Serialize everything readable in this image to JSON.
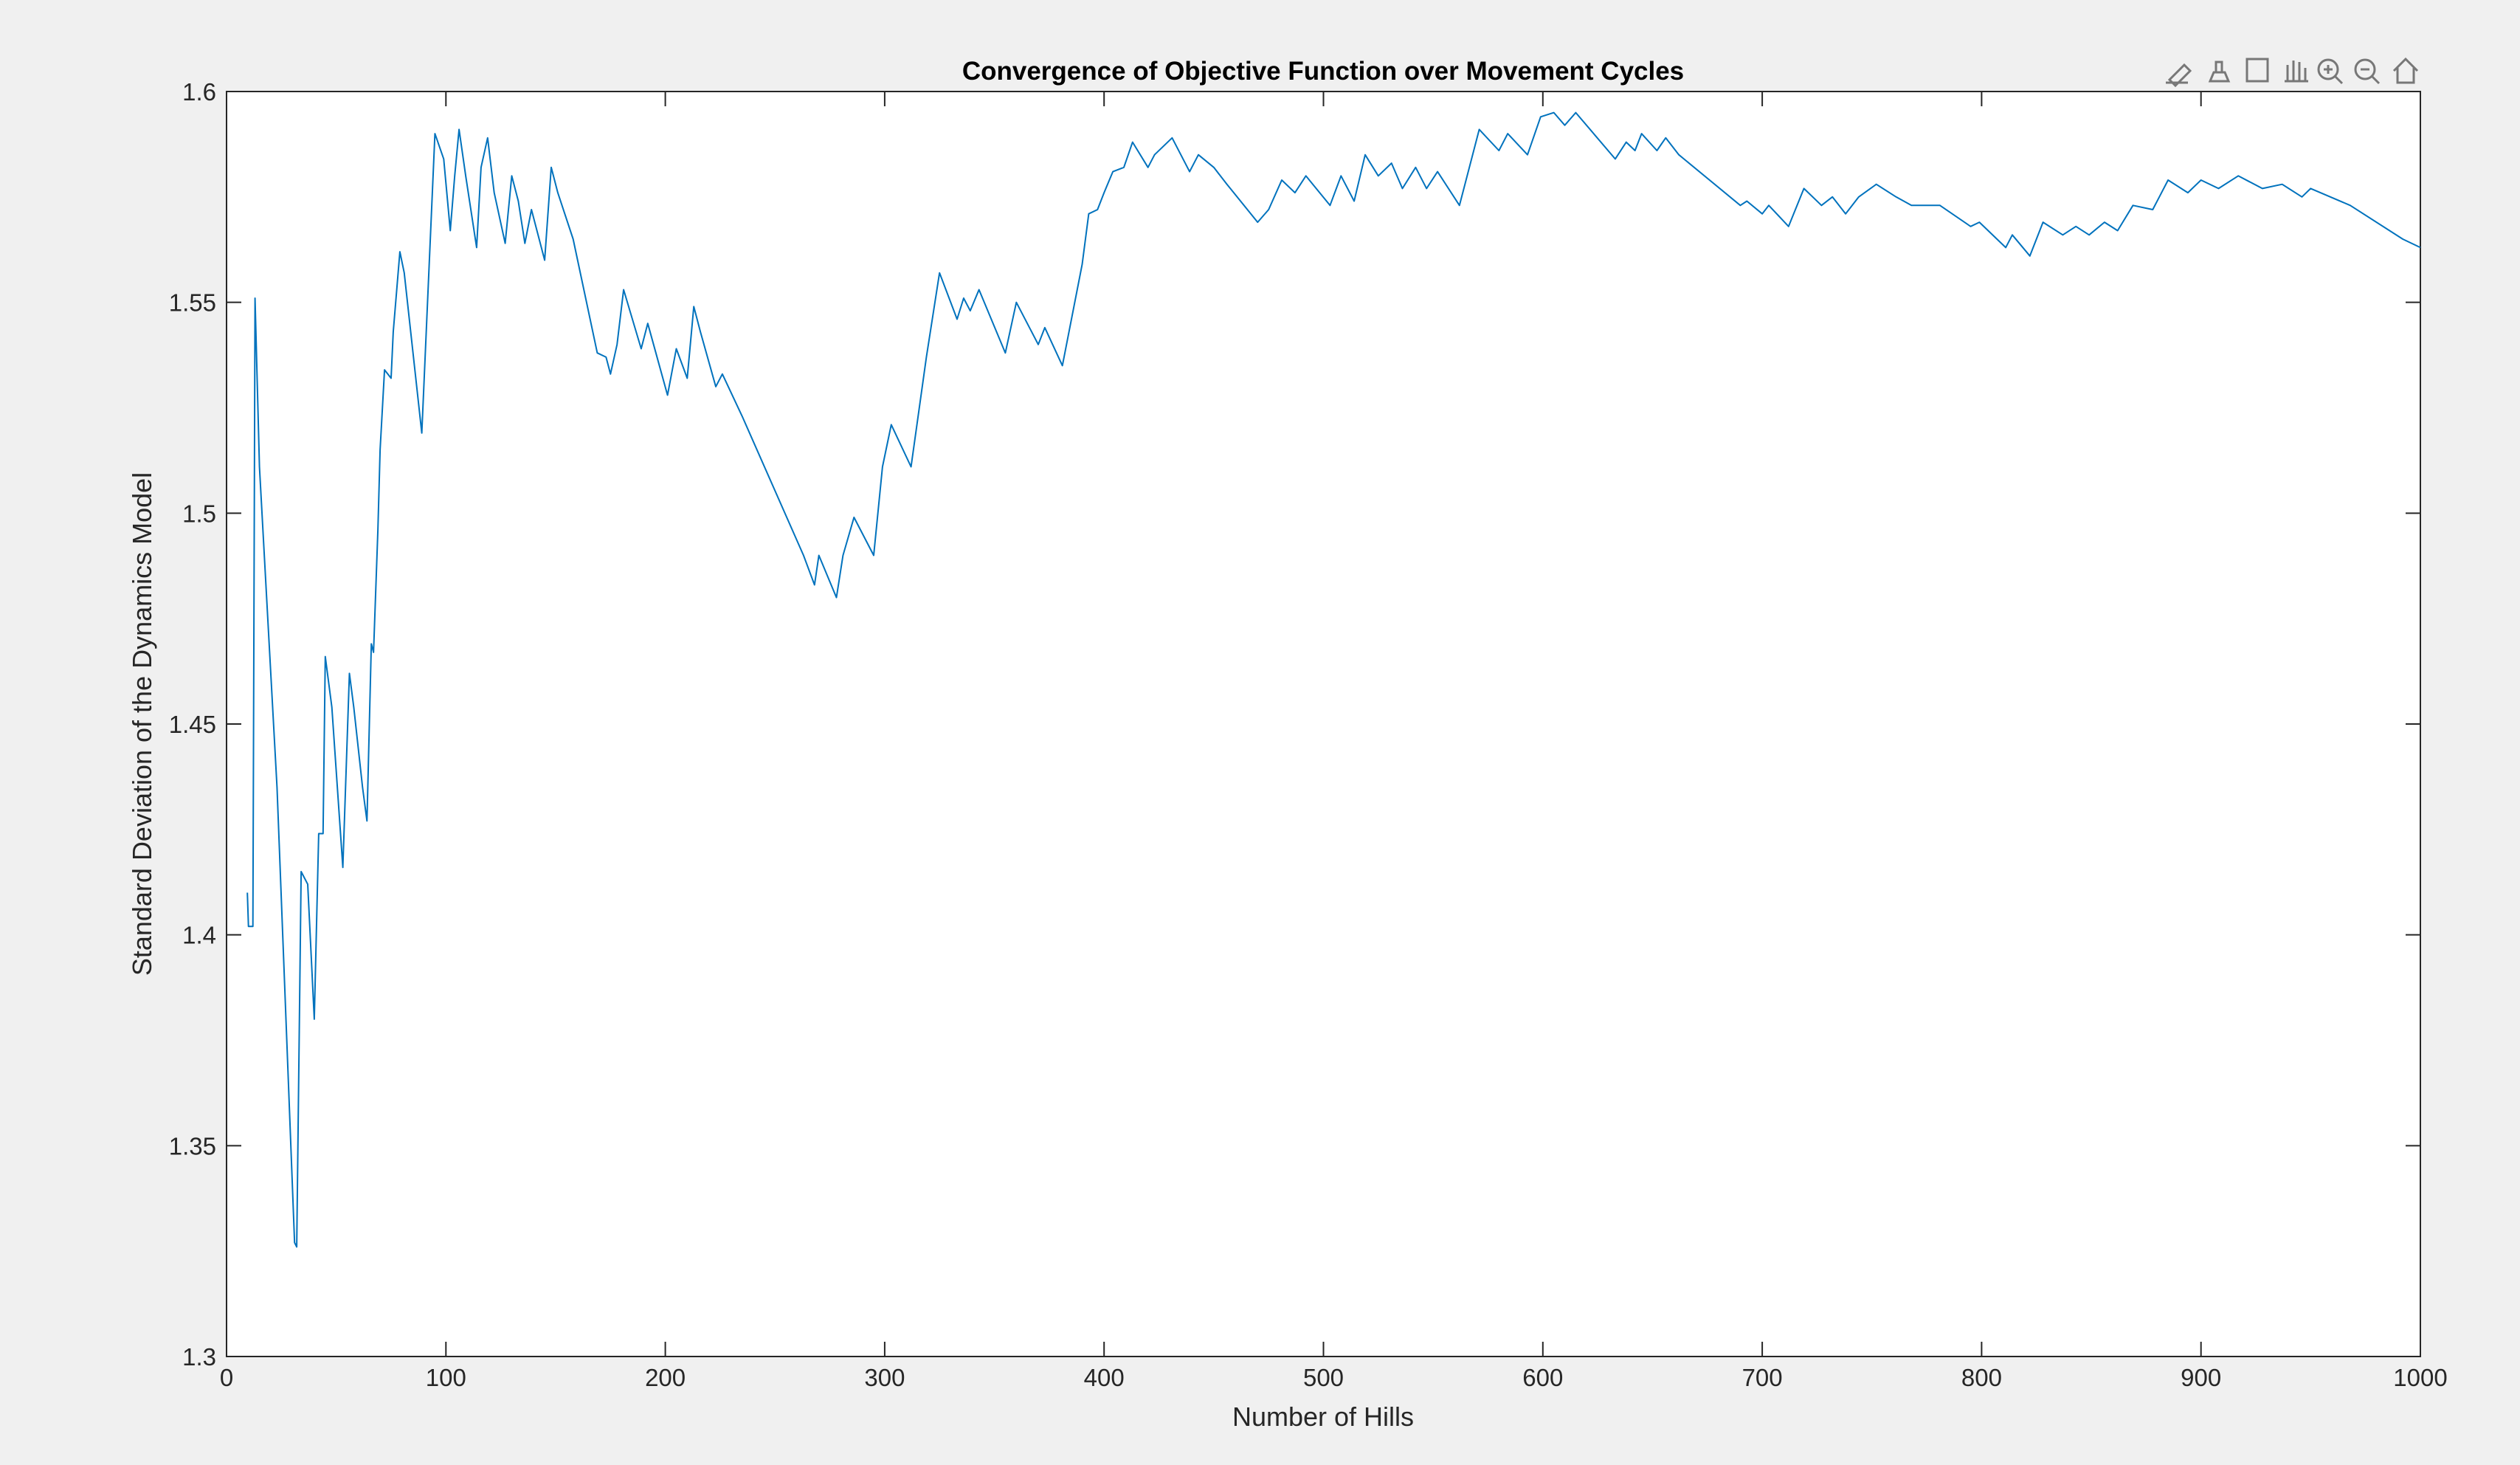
{
  "chart_data": {
    "type": "line",
    "title": "Convergence of Objective Function over Movement Cycles",
    "xlabel": "Number of Hills",
    "ylabel": "Standard Deviation of the Dynamics Model",
    "xlim": [
      0,
      1000
    ],
    "ylim": [
      1.3,
      1.6
    ],
    "xticks": [
      0,
      100,
      200,
      300,
      400,
      500,
      600,
      700,
      800,
      900,
      1000
    ],
    "yticks": [
      1.3,
      1.35,
      1.4,
      1.45,
      1.5,
      1.55,
      1.6
    ],
    "grid": false,
    "series": [
      {
        "color": "#0072bd",
        "x": [
          9.5,
          10,
          12,
          13,
          15,
          23,
          31,
          32,
          34,
          37,
          40,
          42,
          44,
          45,
          48,
          53,
          56,
          58,
          62,
          64,
          66,
          67,
          69,
          70,
          72,
          75,
          76,
          79,
          81,
          89,
          95,
          99,
          102,
          104,
          106,
          109,
          114,
          116,
          119,
          122,
          127,
          130,
          133,
          136,
          139,
          145,
          148,
          151,
          158,
          169,
          173,
          175,
          178,
          181,
          189,
          192,
          201,
          205,
          210,
          213,
          216,
          223,
          226,
          235,
          263,
          268,
          270,
          278,
          281,
          286,
          295,
          299,
          303,
          312,
          319,
          325,
          333,
          336,
          339,
          343,
          355,
          360,
          370,
          373,
          381,
          390,
          393,
          397,
          400,
          404,
          409,
          413,
          420,
          423,
          431,
          439,
          443,
          450,
          456,
          470,
          475,
          481,
          487,
          492,
          503,
          508,
          514,
          519,
          525,
          531,
          536,
          542,
          547,
          552,
          562,
          571,
          580,
          584,
          593,
          599,
          605,
          610,
          615,
          633,
          638,
          642,
          645,
          652,
          656,
          662,
          690,
          693,
          700,
          703,
          712,
          719,
          727,
          732,
          738,
          744,
          752,
          761,
          768,
          781,
          795,
          799,
          811,
          814,
          822,
          828,
          837,
          843,
          849,
          856,
          862,
          869,
          878,
          885,
          894,
          900,
          908,
          917,
          928,
          937,
          946,
          950,
          968,
          992,
          1000
        ],
        "values": [
          1.41,
          1.402,
          1.402,
          1.551,
          1.511,
          1.435,
          1.327,
          1.326,
          1.415,
          1.412,
          1.38,
          1.424,
          1.424,
          1.466,
          1.454,
          1.416,
          1.462,
          1.454,
          1.435,
          1.427,
          1.469,
          1.467,
          1.496,
          1.515,
          1.534,
          1.532,
          1.543,
          1.562,
          1.557,
          1.519,
          1.59,
          1.584,
          1.567,
          1.58,
          1.591,
          1.58,
          1.563,
          1.582,
          1.589,
          1.576,
          1.564,
          1.58,
          1.574,
          1.564,
          1.572,
          1.56,
          1.582,
          1.576,
          1.565,
          1.538,
          1.537,
          1.533,
          1.54,
          1.553,
          1.539,
          1.545,
          1.528,
          1.539,
          1.532,
          1.549,
          1.543,
          1.53,
          1.533,
          1.523,
          1.49,
          1.483,
          1.49,
          1.48,
          1.49,
          1.499,
          1.49,
          1.511,
          1.521,
          1.511,
          1.537,
          1.557,
          1.546,
          1.551,
          1.548,
          1.553,
          1.538,
          1.55,
          1.54,
          1.544,
          1.535,
          1.559,
          1.571,
          1.572,
          1.576,
          1.581,
          1.582,
          1.588,
          1.582,
          1.585,
          1.589,
          1.581,
          1.585,
          1.582,
          1.578,
          1.569,
          1.572,
          1.579,
          1.576,
          1.58,
          1.573,
          1.58,
          1.574,
          1.585,
          1.58,
          1.583,
          1.577,
          1.582,
          1.577,
          1.581,
          1.573,
          1.591,
          1.586,
          1.59,
          1.585,
          1.594,
          1.595,
          1.592,
          1.595,
          1.584,
          1.588,
          1.586,
          1.59,
          1.586,
          1.589,
          1.585,
          1.573,
          1.574,
          1.571,
          1.573,
          1.568,
          1.577,
          1.573,
          1.575,
          1.571,
          1.575,
          1.578,
          1.575,
          1.573,
          1.573,
          1.568,
          1.569,
          1.563,
          1.566,
          1.561,
          1.569,
          1.566,
          1.568,
          1.566,
          1.569,
          1.567,
          1.573,
          1.572,
          1.579,
          1.576,
          1.579,
          1.577,
          1.58,
          1.577,
          1.578,
          1.575,
          1.577,
          1.573,
          1.565,
          1.563
        ]
      }
    ]
  }
}
